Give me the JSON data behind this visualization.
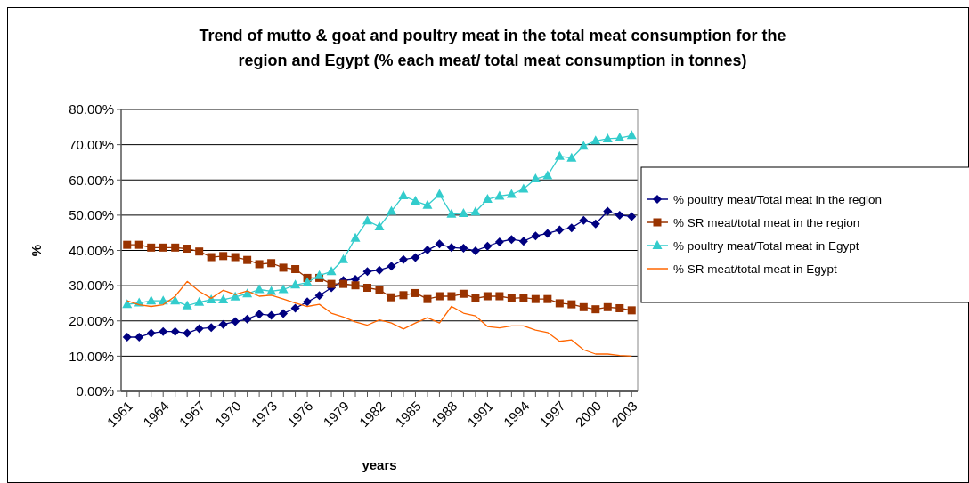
{
  "chart_data": {
    "type": "line",
    "title": "Trend of mutto & goat and poultry meat in the total meat consumption for the region and Egypt (% each meat/ total meat consumption in tonnes)",
    "xlabel": "years",
    "ylabel": "%",
    "categories": [
      "1961",
      null,
      null,
      "1964",
      null,
      null,
      "1967",
      null,
      null,
      "1970",
      null,
      null,
      "1973",
      null,
      null,
      "1976",
      null,
      null,
      "1979",
      null,
      null,
      "1982",
      null,
      null,
      "1985",
      null,
      null,
      "1988",
      null,
      null,
      "1991",
      null,
      null,
      "1994",
      null,
      null,
      "1997",
      null,
      null,
      "2000",
      null,
      null,
      "2003"
    ],
    "series": [
      {
        "name": "% poultry meat/Total meat in the region",
        "color": "#000080",
        "marker": "diamond",
        "values": [
          15.4,
          15.4,
          16.5,
          17.0,
          17.0,
          16.5,
          17.8,
          18.1,
          19.0,
          19.8,
          20.5,
          21.9,
          21.6,
          22.1,
          23.6,
          25.4,
          27.2,
          29.4,
          31.5,
          31.8,
          34.0,
          34.4,
          35.5,
          37.4,
          38.0,
          40.1,
          41.8,
          40.8,
          40.6,
          39.9,
          41.2,
          42.4,
          43.1,
          42.6,
          44.1,
          44.8,
          45.8,
          46.4,
          48.5,
          47.5,
          51.1,
          50.0,
          49.6
        ]
      },
      {
        "name": "% SR meat/total meat in the region",
        "color": "#993300",
        "marker": "square",
        "values": [
          41.6,
          41.6,
          40.8,
          40.8,
          40.8,
          40.5,
          39.7,
          38.1,
          38.4,
          38.1,
          37.3,
          36.1,
          36.4,
          35.1,
          34.7,
          32.2,
          32.2,
          30.5,
          30.5,
          30.1,
          29.4,
          28.8,
          26.7,
          27.3,
          27.9,
          26.2,
          27.0,
          27.0,
          27.7,
          26.4,
          27.0,
          27.0,
          26.4,
          26.6,
          26.2,
          26.2,
          25.0,
          24.7,
          23.9,
          23.3,
          23.9,
          23.6,
          23.0
        ]
      },
      {
        "name": "% poultry meat/Total meat in Egypt",
        "color": "#33cccc",
        "marker": "triangle",
        "values": [
          24.7,
          25.1,
          25.7,
          25.7,
          25.7,
          24.3,
          25.3,
          26.0,
          26.0,
          26.8,
          27.7,
          28.9,
          28.4,
          28.9,
          30.2,
          30.9,
          32.9,
          34.0,
          37.4,
          43.5,
          48.4,
          46.7,
          51.1,
          55.5,
          54.0,
          52.8,
          55.9,
          50.3,
          50.5,
          50.9,
          54.5,
          55.4,
          55.9,
          57.4,
          60.3,
          61.2,
          66.7,
          66.2,
          69.6,
          71.1,
          71.7,
          71.9,
          72.6
        ]
      },
      {
        "name": "% SR meat/total meat in Egypt",
        "color": "#ff6600",
        "marker": "none",
        "values": [
          25.7,
          24.6,
          24.1,
          24.6,
          27.0,
          31.2,
          28.4,
          26.4,
          28.7,
          27.5,
          28.5,
          27.0,
          27.3,
          26.2,
          25.1,
          24.1,
          24.7,
          22.2,
          21.1,
          19.7,
          18.8,
          20.3,
          19.4,
          17.7,
          19.4,
          20.9,
          19.4,
          24.1,
          22.2,
          21.4,
          18.4,
          18.0,
          18.6,
          18.6,
          17.4,
          16.7,
          14.2,
          14.6,
          11.8,
          10.6,
          10.6,
          10.2,
          10.0
        ]
      }
    ],
    "ylim": [
      0,
      80
    ],
    "yticks": [
      {
        "value": 0,
        "label": "0.00%"
      },
      {
        "value": 10,
        "label": "10.00%"
      },
      {
        "value": 20,
        "label": "20.00%"
      },
      {
        "value": 30,
        "label": "30.00%"
      },
      {
        "value": 40,
        "label": "40.00%"
      },
      {
        "value": 50,
        "label": "50.00%"
      },
      {
        "value": 60,
        "label": "60.00%"
      },
      {
        "value": 70,
        "label": "70.00%"
      },
      {
        "value": 80,
        "label": "80.00%"
      }
    ],
    "grid": "y",
    "legend": "right"
  }
}
